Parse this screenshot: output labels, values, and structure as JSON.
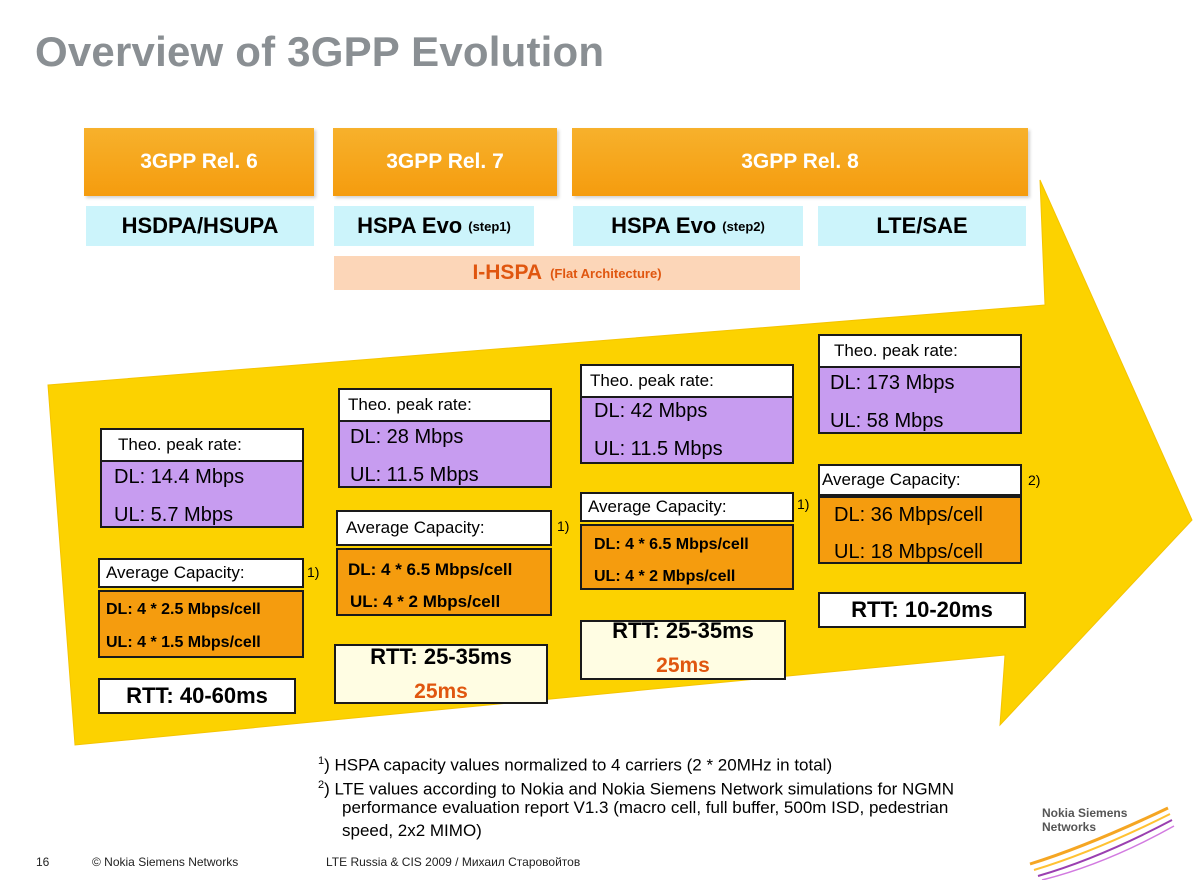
{
  "title": "Overview of 3GPP Evolution",
  "colors": {
    "arrow": "#fcd200",
    "release": "#f59c0e",
    "tech": "#ccf4fb",
    "peak": "#c79cf0",
    "capacity": "#f59c0e",
    "ihspa": "#fcd6b8",
    "ihspa_text": "#e0560f",
    "title": "#8a8f93"
  },
  "releases": [
    "3GPP Rel. 6",
    "3GPP Rel. 7",
    "3GPP Rel. 8"
  ],
  "techs": [
    {
      "name": "HSDPA/HSUPA",
      "note": ""
    },
    {
      "name": "HSPA Evo",
      "note": "(step1)"
    },
    {
      "name": "HSPA Evo",
      "note": "(step2)"
    },
    {
      "name": "LTE/SAE",
      "note": ""
    }
  ],
  "ihspa": {
    "name": "I-HSPA",
    "note": "(Flat Architecture)"
  },
  "columns": [
    {
      "peak_header": "Theo. peak rate:",
      "dl": "DL: 14.4 Mbps",
      "ul": "UL: 5.7 Mbps",
      "cap_header": "Average Capacity:",
      "cap_note": "1)",
      "cap_dl": "DL: 4 * 2.5 Mbps/cell",
      "cap_ul": "UL: 4 * 1.5 Mbps/cell",
      "rtt": "RTT: 40-60ms",
      "rtt2": ""
    },
    {
      "peak_header": "Theo. peak rate:",
      "dl": "DL: 28 Mbps",
      "ul": "UL: 11.5 Mbps",
      "cap_header": "Average Capacity:",
      "cap_note": "1)",
      "cap_dl": "DL: 4 * 6.5 Mbps/cell",
      "cap_ul": "UL: 4 * 2 Mbps/cell",
      "rtt": "RTT: 25-35ms",
      "rtt2": "25ms"
    },
    {
      "peak_header": "Theo. peak rate:",
      "dl": "DL: 42 Mbps",
      "ul": "UL: 11.5 Mbps",
      "cap_header": "Average Capacity:",
      "cap_note": "1)",
      "cap_dl": "DL: 4 * 6.5 Mbps/cell",
      "cap_ul": "UL: 4 * 2 Mbps/cell",
      "rtt": "RTT: 25-35ms",
      "rtt2": "25ms"
    },
    {
      "peak_header": "Theo. peak rate:",
      "dl": "DL: 173 Mbps",
      "ul": "UL: 58 Mbps",
      "cap_header": "Average Capacity:",
      "cap_note": "2)",
      "cap_dl": "DL: 36 Mbps/cell",
      "cap_ul": "UL: 18 Mbps/cell",
      "rtt": "RTT: 10-20ms",
      "rtt2": ""
    }
  ],
  "footnotes": {
    "n1_mark": "1",
    "n1": ") HSPA capacity values normalized to 4 carriers (2 * 20MHz in total)",
    "n2_mark": "2",
    "n2_l1": ") LTE values according to Nokia and Nokia Siemens Network simulations for NGMN",
    "n2_l2": "performance evaluation report V1.3 (macro cell, full buffer, 500m ISD, pedestrian",
    "n2_l3": "speed, 2x2 MIMO)"
  },
  "footer": {
    "page": "16",
    "copyright": "© Nokia Siemens Networks",
    "event": "LTE Russia & CIS 2009 / Михаил Старовойтов"
  },
  "logo": {
    "line1": "Nokia Siemens",
    "line2": "Networks"
  }
}
